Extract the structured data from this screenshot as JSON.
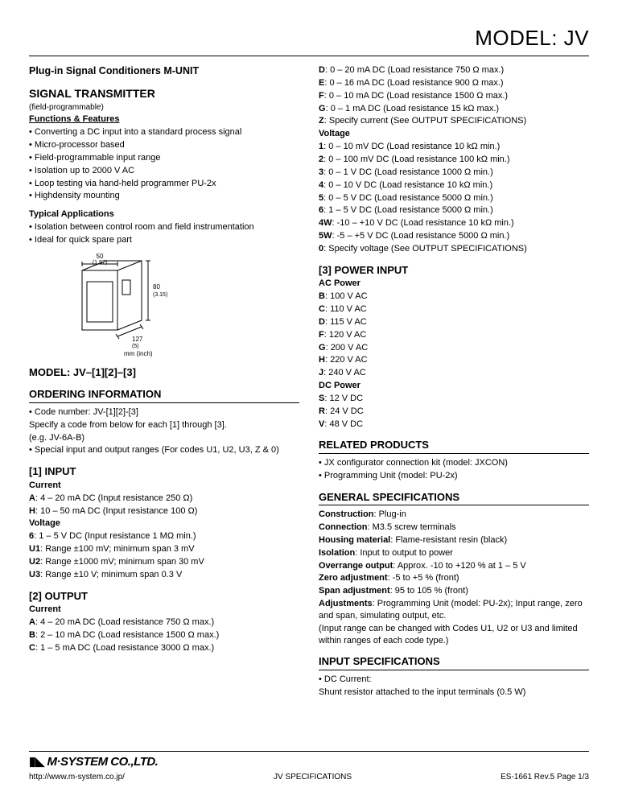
{
  "title": "MODEL: JV",
  "left": {
    "subtitle": "Plug-in Signal Conditioners M-UNIT",
    "transmitter_heading": "SIGNAL TRANSMITTER",
    "transmitter_note": "(field-programmable)",
    "functions_heading": "Functions & Features",
    "functions": [
      "Converting a DC input into a standard process signal",
      "Micro-processor based",
      "Field-programmable input range",
      "Isolation up to 2000 V AC",
      "Loop testing via hand-held programmer PU-2x",
      "Highdensity mounting"
    ],
    "typical_heading": "Typical Applications",
    "typical": [
      "Isolation between control room and field instrumentation",
      "Ideal for quick spare part"
    ],
    "diagram": {
      "w_mm": "50",
      "w_in": "(1.97)",
      "h_mm": "80",
      "h_in": "(3.15)",
      "d_mm": "127",
      "d_in": "(5)",
      "caption": "mm (inch)"
    },
    "model_heading": "MODEL: JV–[1][2]–[3]",
    "ordering_heading": "ORDERING INFORMATION",
    "ordering": [
      "• Code number: JV-[1][2]-[3]",
      "Specify a code from below for each [1] through [3].",
      "(e.g. JV-6A-B)",
      "• Special input and output ranges (For codes U1, U2, U3, Z & 0)"
    ],
    "input_heading": "[1] INPUT",
    "input_current_label": "Current",
    "input_current": [
      {
        "k": "A",
        "v": "4 – 20 mA DC (Input resistance 250 Ω)"
      },
      {
        "k": "H",
        "v": "10 – 50 mA DC (Input resistance 100 Ω)"
      }
    ],
    "input_voltage_label": "Voltage",
    "input_voltage": [
      {
        "k": "6",
        "v": "1 – 5 V DC (Input resistance 1 MΩ min.)"
      },
      {
        "k": "U1",
        "v": "Range ±100 mV; minimum span 3 mV"
      },
      {
        "k": "U2",
        "v": "Range ±1000 mV; minimum span 30 mV"
      },
      {
        "k": "U3",
        "v": "Range ±10 V; minimum span 0.3 V"
      }
    ],
    "output_heading": "[2] OUTPUT",
    "output_current_label": "Current",
    "output_current_left": [
      {
        "k": "A",
        "v": "4 – 20 mA DC (Load resistance 750 Ω max.)"
      },
      {
        "k": "B",
        "v": "2 – 10 mA DC (Load resistance 1500 Ω max.)"
      },
      {
        "k": "C",
        "v": "1 – 5 mA DC (Load resistance 3000 Ω max.)"
      }
    ]
  },
  "right": {
    "output_current_cont": [
      {
        "k": "D",
        "v": "0 – 20 mA DC (Load resistance 750 Ω max.)"
      },
      {
        "k": "E",
        "v": "0 – 16 mA DC (Load resistance 900 Ω max.)"
      },
      {
        "k": "F",
        "v": "0 – 10 mA DC (Load resistance 1500 Ω max.)"
      },
      {
        "k": "G",
        "v": "0 – 1 mA DC (Load resistance 15 kΩ max.)"
      },
      {
        "k": "Z",
        "v": "Specify current (See OUTPUT SPECIFICATIONS)"
      }
    ],
    "output_voltage_label": "Voltage",
    "output_voltage": [
      {
        "k": "1",
        "v": "0 – 10 mV DC (Load resistance 10 kΩ min.)"
      },
      {
        "k": "2",
        "v": "0 – 100 mV DC (Load resistance 100 kΩ min.)"
      },
      {
        "k": "3",
        "v": "0 – 1 V DC (Load resistance 1000 Ω min.)"
      },
      {
        "k": "4",
        "v": "0 – 10 V DC (Load resistance 10 kΩ min.)"
      },
      {
        "k": "5",
        "v": "0 – 5 V DC (Load resistance 5000 Ω min.)"
      },
      {
        "k": "6",
        "v": "1 – 5 V DC (Load resistance 5000 Ω min.)"
      },
      {
        "k": "4W",
        "v": "-10 – +10 V DC (Load resistance 10 kΩ min.)"
      },
      {
        "k": "5W",
        "v": "-5 – +5 V DC (Load resistance 5000 Ω min.)"
      },
      {
        "k": "0",
        "v": "Specify voltage (See OUTPUT SPECIFICATIONS)"
      }
    ],
    "power_heading": "[3] POWER INPUT",
    "ac_label": "AC Power",
    "ac": [
      {
        "k": "B",
        "v": "100 V AC"
      },
      {
        "k": "C",
        "v": "110 V AC"
      },
      {
        "k": "D",
        "v": "115 V AC"
      },
      {
        "k": "F",
        "v": "120 V AC"
      },
      {
        "k": "G",
        "v": "200 V AC"
      },
      {
        "k": "H",
        "v": "220 V AC"
      },
      {
        "k": "J",
        "v": "240 V AC"
      }
    ],
    "dc_label": "DC Power",
    "dc": [
      {
        "k": "S",
        "v": "12 V DC"
      },
      {
        "k": "R",
        "v": "24 V DC"
      },
      {
        "k": "V",
        "v": "48 V DC"
      }
    ],
    "related_heading": "RELATED PRODUCTS",
    "related": [
      "JX configurator connection kit (model: JXCON)",
      "Programming Unit (model: PU-2x)"
    ],
    "general_heading": "GENERAL SPECIFICATIONS",
    "general": [
      {
        "k": "Construction",
        "v": "Plug-in"
      },
      {
        "k": "Connection",
        "v": "M3.5 screw terminals"
      },
      {
        "k": "Housing material",
        "v": "Flame-resistant resin (black)"
      },
      {
        "k": "Isolation",
        "v": "Input to output to power"
      },
      {
        "k": "Overrange output",
        "v": "Approx. -10 to +120 % at 1 – 5 V"
      },
      {
        "k": "Zero adjustment",
        "v": "-5 to +5 % (front)"
      },
      {
        "k": "Span adjustment",
        "v": "95 to 105 % (front)"
      },
      {
        "k": "Adjustments",
        "v": "Programming Unit (model: PU-2x); Input range, zero and span, simulating output, etc."
      }
    ],
    "general_note": "(Input range can be changed with Codes U1, U2 or U3 and limited within ranges of each code type.)",
    "inputspec_heading": "INPUT SPECIFICATIONS",
    "inputspec_sub": "• DC Current:",
    "inputspec_line": "Shunt resistor attached to the input terminals (0.5 W)"
  },
  "footer": {
    "company": "M·SYSTEM CO.,LTD.",
    "url": "http://www.m-system.co.jp/",
    "center": "JV SPECIFICATIONS",
    "right": "ES-1661 Rev.5   Page 1/3"
  }
}
